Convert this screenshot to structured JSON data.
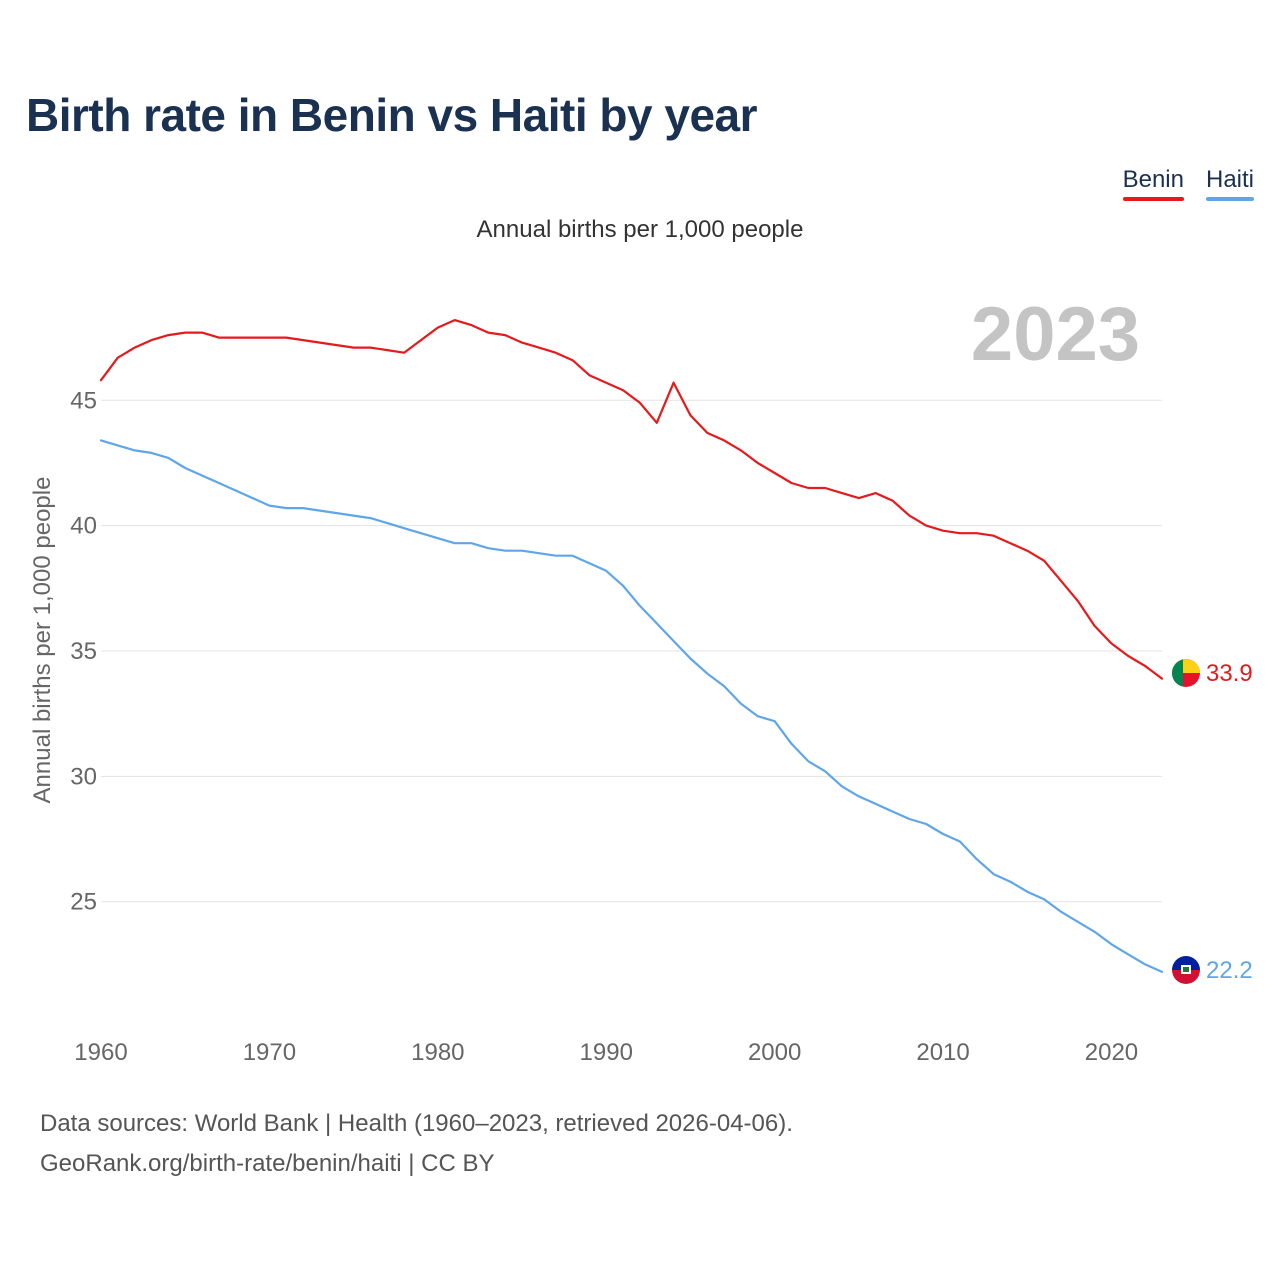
{
  "title": "Birth rate in Benin vs Haiti by year",
  "subtitle": "Annual births per 1,000 people",
  "legend": [
    {
      "name": "Benin",
      "color": "#e41a1c"
    },
    {
      "name": "Haiti",
      "color": "#5fa6e8"
    }
  ],
  "year_label": "2023",
  "footer": {
    "line1": "Data sources: World Bank | Health (1960–2023, retrieved 2026-04-06).",
    "line2": "GeoRank.org/birth-rate/benin/haiti | CC BY"
  },
  "chart_data": {
    "type": "line",
    "title": "Birth rate in Benin vs Haiti by year",
    "subtitle": "Annual births per 1,000 people",
    "xlabel": "",
    "ylabel": "Annual births per 1,000 people",
    "xlim": [
      1960,
      2023
    ],
    "ylim": [
      21,
      49
    ],
    "xticks": [
      1960,
      1970,
      1980,
      1990,
      2000,
      2010,
      2020
    ],
    "yticks": [
      25,
      30,
      35,
      40,
      45
    ],
    "grid": true,
    "x": [
      1960,
      1961,
      1962,
      1963,
      1964,
      1965,
      1966,
      1967,
      1968,
      1969,
      1970,
      1971,
      1972,
      1973,
      1974,
      1975,
      1976,
      1977,
      1978,
      1979,
      1980,
      1981,
      1982,
      1983,
      1984,
      1985,
      1986,
      1987,
      1988,
      1989,
      1990,
      1991,
      1992,
      1993,
      1994,
      1995,
      1996,
      1997,
      1998,
      1999,
      2000,
      2001,
      2002,
      2003,
      2004,
      2005,
      2006,
      2007,
      2008,
      2009,
      2010,
      2011,
      2012,
      2013,
      2014,
      2015,
      2016,
      2017,
      2018,
      2019,
      2020,
      2021,
      2022,
      2023
    ],
    "series": [
      {
        "name": "Benin",
        "color": "#e41a1c",
        "end_label": "33.9",
        "values": [
          45.8,
          46.7,
          47.1,
          47.4,
          47.6,
          47.7,
          47.7,
          47.5,
          47.5,
          47.5,
          47.5,
          47.5,
          47.4,
          47.3,
          47.2,
          47.1,
          47.1,
          47.0,
          46.9,
          47.4,
          47.9,
          48.2,
          48.0,
          47.7,
          47.6,
          47.3,
          47.1,
          46.9,
          46.6,
          46.0,
          45.7,
          45.4,
          44.9,
          44.1,
          45.7,
          44.4,
          43.7,
          43.4,
          43.0,
          42.5,
          42.1,
          41.7,
          41.5,
          41.5,
          41.3,
          41.1,
          41.3,
          41.0,
          40.4,
          40.0,
          39.8,
          39.7,
          39.7,
          39.6,
          39.3,
          39.0,
          38.6,
          37.8,
          37.0,
          36.0,
          35.3,
          34.8,
          34.4,
          33.9
        ]
      },
      {
        "name": "Haiti",
        "color": "#5fa6e8",
        "end_label": "22.2",
        "values": [
          43.4,
          43.2,
          43.0,
          42.9,
          42.7,
          42.3,
          42.0,
          41.7,
          41.4,
          41.1,
          40.8,
          40.7,
          40.7,
          40.6,
          40.5,
          40.4,
          40.3,
          40.1,
          39.9,
          39.7,
          39.5,
          39.3,
          39.3,
          39.1,
          39.0,
          39.0,
          38.9,
          38.8,
          38.8,
          38.5,
          38.2,
          37.6,
          36.8,
          36.1,
          35.4,
          34.7,
          34.1,
          33.6,
          32.9,
          32.4,
          32.2,
          31.3,
          30.6,
          30.2,
          29.6,
          29.2,
          28.9,
          28.6,
          28.3,
          28.1,
          27.7,
          27.4,
          26.7,
          26.1,
          25.8,
          25.4,
          25.1,
          24.6,
          24.2,
          23.8,
          23.3,
          22.9,
          22.5,
          22.2
        ]
      }
    ]
  }
}
